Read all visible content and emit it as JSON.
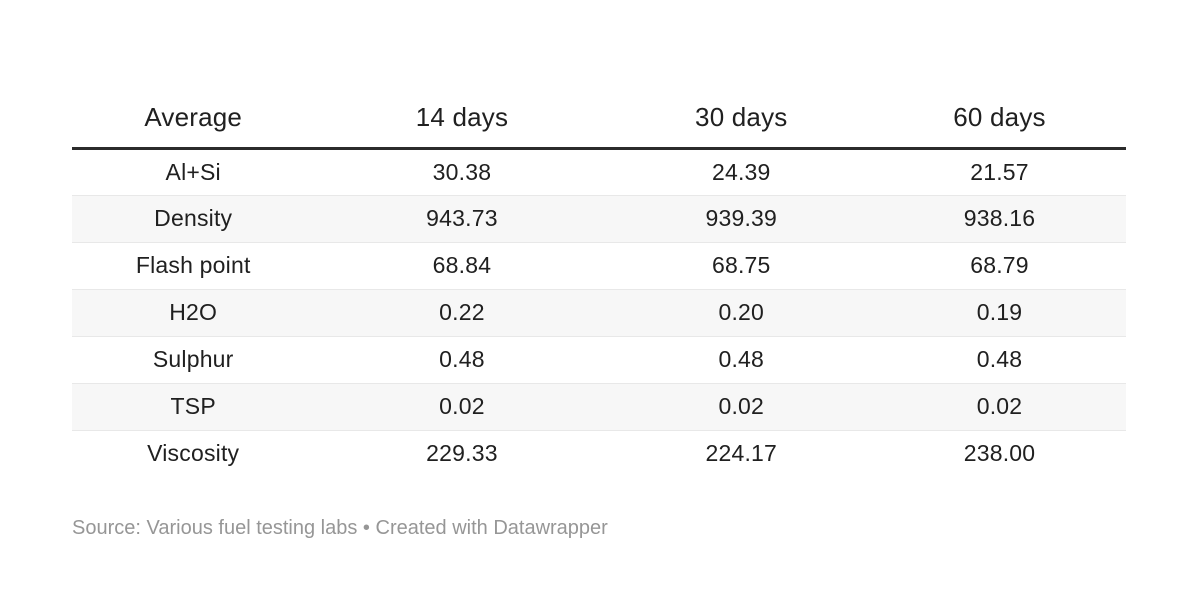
{
  "chart_data": {
    "type": "table",
    "columns": [
      "Average",
      "14 days",
      "30 days",
      "60 days"
    ],
    "rows": [
      {
        "label": "Al+Si",
        "values": [
          "30.38",
          "24.39",
          "21.57"
        ]
      },
      {
        "label": "Density",
        "values": [
          "943.73",
          "939.39",
          "938.16"
        ]
      },
      {
        "label": "Flash point",
        "values": [
          "68.84",
          "68.75",
          "68.79"
        ]
      },
      {
        "label": "H2O",
        "values": [
          "0.22",
          "0.20",
          "0.19"
        ]
      },
      {
        "label": "Sulphur",
        "values": [
          "0.48",
          "0.48",
          "0.48"
        ]
      },
      {
        "label": "TSP",
        "values": [
          "0.02",
          "0.02",
          "0.02"
        ]
      },
      {
        "label": "Viscosity",
        "values": [
          "229.33",
          "224.17",
          "238.00"
        ]
      }
    ],
    "layout_hints": {
      "striped_rows": true,
      "header_rule": true,
      "cell_alignment": "center",
      "legend": "none",
      "grid": "horizontal-row-borders"
    }
  },
  "footer": {
    "source_label": "Source:",
    "source_text": "Various fuel testing labs",
    "separator": "•",
    "attribution": "Created with Datawrapper"
  },
  "colors": {
    "text": "#202020",
    "header_rule": "#2b2b2b",
    "row_stripe": "#f7f7f7",
    "row_border": "#e8e8e8",
    "footer_text": "#969696",
    "background": "#ffffff"
  }
}
